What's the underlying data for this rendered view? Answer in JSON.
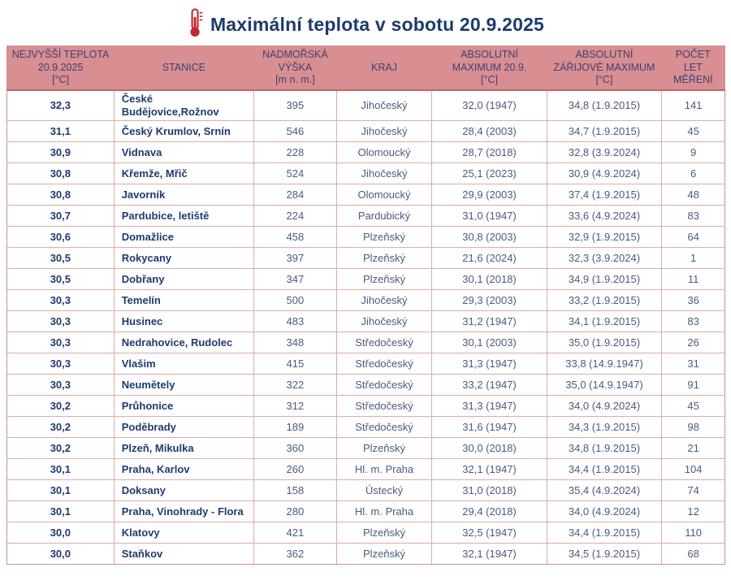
{
  "header": {
    "title": "Maximální teplota v sobotu 20.9.2025",
    "icon": "thermometer-icon"
  },
  "colors": {
    "title_text": "#1e3a6d",
    "header_bg": "#d98f91",
    "header_text": "#3e3e74",
    "grid_border": "#dcabad",
    "station_text": "#1f3a6e",
    "value_text": "#4b5a80",
    "thermometer_red": "#c2262e"
  },
  "table": {
    "columns": [
      {
        "id": "temperature",
        "label": "NEJVYŠŠÍ TEPLOTA\n20.9.2025\n[°C]"
      },
      {
        "id": "station",
        "label": "STANICE"
      },
      {
        "id": "elevation",
        "label": "NADMOŘSKÁ\nVÝŠKA\n[m n. m.]"
      },
      {
        "id": "region",
        "label": "KRAJ"
      },
      {
        "id": "abs_max_209",
        "label": "ABSOLUTNÍ\nMAXIMUM 20.9.\n[°C]"
      },
      {
        "id": "abs_max_september",
        "label": "ABSOLUTNÍ\nZÁŘIJOVÉ MAXIMUM\n[°C]"
      },
      {
        "id": "years_measured",
        "label": "POČET\nLET\nMĚŘENÍ"
      }
    ],
    "column_widths_pct": [
      14.9,
      19.5,
      11.5,
      13.3,
      16.0,
      16.0,
      8.8
    ],
    "rows": [
      [
        "32,3",
        "České Budějovice,Rožnov",
        "395",
        "Jihočeský",
        "32,0 (1947)",
        "34,8 (1.9.2015)",
        "141"
      ],
      [
        "31,1",
        "Český Krumlov, Srnín",
        "546",
        "Jihočeský",
        "28,4 (2003)",
        "34,7 (1.9.2015)",
        "45"
      ],
      [
        "30,9",
        "Vidnava",
        "228",
        "Olomoucký",
        "28,7 (2018)",
        "32,8 (3.9.2024)",
        "9"
      ],
      [
        "30,8",
        "Křemže, Mřič",
        "524",
        "Jihočeský",
        "25,1 (2023)",
        "30,9 (4.9.2024)",
        "6"
      ],
      [
        "30,8",
        "Javorník",
        "284",
        "Olomoucký",
        "29,9 (2003)",
        "37,4 (1.9.2015)",
        "48"
      ],
      [
        "30,7",
        "Pardubice, letiště",
        "224",
        "Pardubický",
        "31,0 (1947)",
        "33,6 (4.9.2024)",
        "83"
      ],
      [
        "30,6",
        "Domažlice",
        "458",
        "Plzeňský",
        "30,8 (2003)",
        "32,9 (1.9.2015)",
        "64"
      ],
      [
        "30,5",
        "Rokycany",
        "397",
        "Plzeňský",
        "21,6 (2024)",
        "32,3 (3.9.2024)",
        "1"
      ],
      [
        "30,5",
        "Dobřany",
        "347",
        "Plzeňský",
        "30,1 (2018)",
        "34,9 (1.9.2015)",
        "11"
      ],
      [
        "30,3",
        "Temelín",
        "500",
        "Jihočeský",
        "29,3 (2003)",
        "33,2 (1.9.2015)",
        "36"
      ],
      [
        "30,3",
        "Husinec",
        "483",
        "Jihočeský",
        "31,2 (1947)",
        "34,1 (1.9.2015)",
        "83"
      ],
      [
        "30,3",
        "Nedrahovice, Rudolec",
        "348",
        "Středočeský",
        "30,1 (2003)",
        "35,0 (1.9.2015)",
        "26"
      ],
      [
        "30,3",
        "Vlašim",
        "415",
        "Středočeský",
        "31,3 (1947)",
        "33,8 (14.9.1947)",
        "31"
      ],
      [
        "30,3",
        "Neumětely",
        "322",
        "Středočeský",
        "33,2 (1947)",
        "35,0 (14.9.1947)",
        "91"
      ],
      [
        "30,2",
        "Průhonice",
        "312",
        "Středočeský",
        "31,3 (1947)",
        "34,0 (4.9.2024)",
        "45"
      ],
      [
        "30,2",
        "Poděbrady",
        "189",
        "Středočeský",
        "31,6 (1947)",
        "34,3 (1.9.2015)",
        "98"
      ],
      [
        "30,2",
        "Plzeň, Mikulka",
        "360",
        "Plzeňský",
        "30,0 (2018)",
        "34,8 (1.9.2015)",
        "21"
      ],
      [
        "30,1",
        "Praha, Karlov",
        "260",
        "Hl. m. Praha",
        "32,1 (1947)",
        "34,4 (1.9.2015)",
        "104"
      ],
      [
        "30,1",
        "Doksany",
        "158",
        "Ústecký",
        "31,0 (2018)",
        "35,4 (4.9.2024)",
        "74"
      ],
      [
        "30,1",
        "Praha, Vinohrady - Flora",
        "280",
        "Hl. m. Praha",
        "29,4 (2018)",
        "34,0 (4.9.2024)",
        "12"
      ],
      [
        "30,0",
        "Klatovy",
        "421",
        "Plzeňský",
        "32,5 (1947)",
        "34,4 (1.9.2015)",
        "110"
      ],
      [
        "30,0",
        "Staňkov",
        "362",
        "Plzeňský",
        "32,1 (1947)",
        "34,5 (1.9.2015)",
        "68"
      ]
    ]
  }
}
